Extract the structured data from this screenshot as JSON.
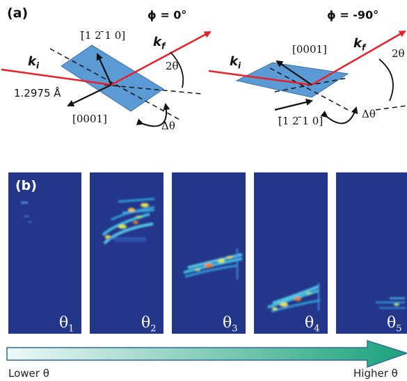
{
  "panel_a": {
    "label": "(a)",
    "left": {
      "phi": "ϕ = 0°",
      "dir_top": "[̄1 2 ̄1 0]",
      "dir_bottom": "[0001]",
      "ki": "k",
      "ki_sub": "i",
      "kf": "k",
      "kf_sub": "f",
      "two_theta": "2θ",
      "delta_theta": "Δθ",
      "wavelength": "1.2975 Å"
    },
    "right": {
      "phi": "ϕ = -90°",
      "dir_top": "[0001]",
      "dir_bottom": "[̄1 2 ̄1 0]",
      "ki": "k",
      "ki_sub": "i",
      "kf": "k",
      "kf_sub": "f",
      "two_theta": "2θ",
      "delta_theta": "Δθ"
    }
  },
  "panel_b": {
    "label": "(b)",
    "thetas": [
      {
        "sym": "θ",
        "sub": "1"
      },
      {
        "sym": "θ",
        "sub": "2"
      },
      {
        "sym": "θ",
        "sub": "3"
      },
      {
        "sym": "θ",
        "sub": "4"
      },
      {
        "sym": "θ",
        "sub": "5"
      }
    ],
    "lower_label": "Lower θ",
    "higher_label": "Higher θ"
  },
  "colors": {
    "panel_bg": "#23368a",
    "plane": "#5b9bd5",
    "beam": "#e8202a",
    "arrow_start": "#e9f5f5",
    "arrow_end": "#1aa27a"
  }
}
